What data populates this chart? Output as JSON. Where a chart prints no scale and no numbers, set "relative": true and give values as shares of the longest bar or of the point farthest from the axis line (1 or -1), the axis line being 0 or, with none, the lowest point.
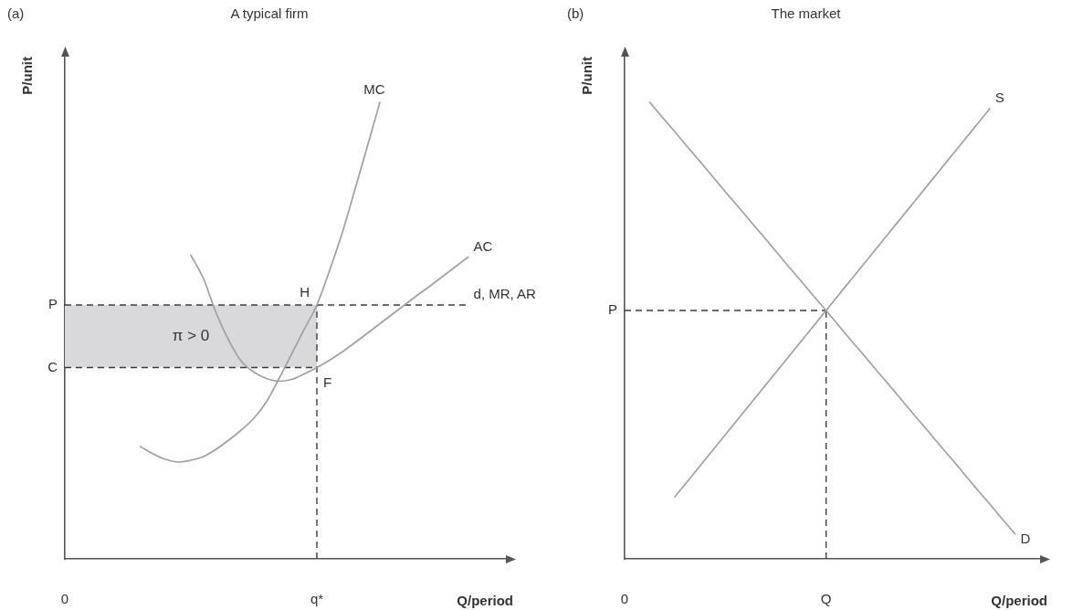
{
  "chart_data": [
    {
      "type": "line",
      "title": "A typical firm",
      "xlabel": "Q/period",
      "ylabel": "P/unit",
      "relative": true,
      "legend": false,
      "grid": false,
      "tick_labels": "x",
      "categories": [
        "0",
        null,
        null,
        null,
        null,
        null,
        null,
        null,
        null,
        null,
        null,
        null,
        null,
        null,
        null,
        null,
        null,
        null,
        null,
        null,
        "q*",
        null,
        null,
        null,
        null,
        null,
        null,
        null,
        null,
        null,
        null,
        null,
        null,
        null,
        null,
        null
      ],
      "series": [
        {
          "name": "MC",
          "color": "#a0a0a0",
          "values": [
            null,
            null,
            null,
            null,
            null,
            null,
            0.246,
            0.23,
            0.218,
            0.212,
            0.216,
            0.224,
            0.24,
            0.26,
            0.282,
            0.308,
            0.344,
            0.395,
            0.449,
            0.503,
            0.556,
            0.631,
            0.713,
            0.807,
            0.903,
            1,
            null,
            null,
            null,
            null,
            null,
            null,
            null,
            null,
            null,
            null
          ]
        },
        {
          "name": "AC",
          "color": "#a0a0a0",
          "values": [
            null,
            null,
            null,
            null,
            null,
            null,
            null,
            null,
            null,
            null,
            0.665,
            0.614,
            0.539,
            0.479,
            0.433,
            0.409,
            0.395,
            0.389,
            0.393,
            0.405,
            0.419,
            0.435,
            0.453,
            0.473,
            0.494,
            0.515,
            0.536,
            0.557,
            0.578,
            0.598,
            0.619,
            0.64,
            0.661,
            null,
            null,
            null
          ]
        },
        {
          "name": "d, MR, AR",
          "color": "#3c3c3c",
          "line_style": "dashed",
          "values": [
            null,
            null,
            null,
            null,
            null,
            null,
            null,
            null,
            null,
            null,
            null,
            null,
            null,
            null,
            null,
            null,
            null,
            null,
            null,
            null,
            0.556,
            0.556,
            0.556,
            0.556,
            0.556,
            0.556,
            0.556,
            0.556,
            0.556,
            0.556,
            0.556,
            0.556,
            0.556,
            null,
            null,
            null
          ]
        }
      ],
      "ref_lines": [
        {
          "axis": "y",
          "value": 0.556,
          "label": "P",
          "color": "#3c3c3c",
          "line_style": "dashed"
        },
        {
          "axis": "y",
          "value": 0.419,
          "label": "C",
          "color": "#3c3c3c",
          "line_style": "dashed"
        },
        {
          "axis": "x",
          "value": "q*",
          "color": "#3c3c3c",
          "line_style": "dashed"
        }
      ],
      "bands": [
        {
          "axis": "y",
          "from": 0.419,
          "to": 0.556,
          "label": "π > 0",
          "color": "#d9d9dc"
        }
      ],
      "annotations": [
        "(a)",
        {
          "text": "H",
          "x": "q*",
          "y": 0.556
        },
        {
          "text": "F",
          "x": "q*",
          "y": 0.419
        }
      ]
    },
    {
      "type": "line",
      "title": "The market",
      "xlabel": "Q/period",
      "ylabel": "P/unit",
      "relative": true,
      "legend": false,
      "grid": false,
      "tick_labels": "x",
      "categories": [
        "0",
        null,
        null,
        null,
        null,
        null,
        null,
        null,
        null,
        null,
        null,
        null,
        null,
        null,
        null,
        null,
        "Q",
        null,
        null,
        null,
        null,
        null,
        null,
        null,
        null,
        null,
        null,
        null,
        null,
        null,
        null,
        null,
        null,
        null
      ],
      "series": [
        {
          "name": "S",
          "color": "#a0a0a0",
          "values": [
            null,
            null,
            null,
            null,
            0.136,
            0.17,
            0.204,
            0.238,
            0.272,
            0.306,
            0.34,
            0.374,
            0.408,
            0.442,
            0.476,
            0.51,
            0.544,
            0.578,
            0.612,
            0.646,
            0.68,
            0.714,
            0.748,
            0.782,
            0.816,
            0.85,
            0.884,
            0.918,
            0.952,
            0.986,
            null,
            null,
            null,
            null
          ]
        },
        {
          "name": "D",
          "color": "#a0a0a0",
          "values": [
            null,
            null,
            1,
            0.967,
            0.935,
            0.902,
            0.87,
            0.837,
            0.804,
            0.772,
            0.739,
            0.707,
            0.674,
            0.641,
            0.609,
            0.576,
            0.544,
            0.511,
            0.478,
            0.446,
            0.413,
            0.381,
            0.348,
            0.315,
            0.283,
            0.25,
            0.218,
            0.185,
            0.152,
            0.12,
            0.087,
            0.055,
            null,
            null
          ]
        }
      ],
      "ref_lines": [
        {
          "axis": "y",
          "value": 0.544,
          "label": "P",
          "color": "#3c3c3c",
          "line_style": "dashed"
        },
        {
          "axis": "x",
          "value": "Q",
          "color": "#3c3c3c",
          "line_style": "dashed"
        }
      ],
      "annotations": [
        "(b)"
      ]
    }
  ]
}
